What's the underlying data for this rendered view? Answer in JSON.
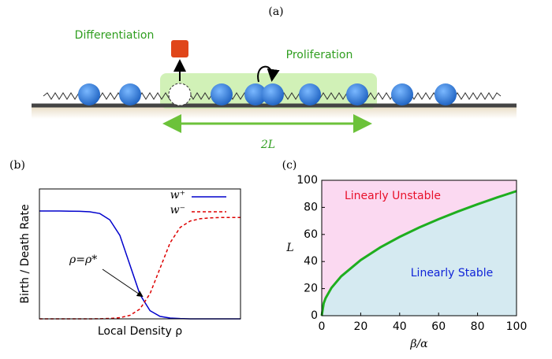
{
  "panel_a": {
    "label": "(a)",
    "differentiation": "Differentiation",
    "proliferation": "Proliferation",
    "length": "2L"
  },
  "chart_data": [
    {
      "type": "line",
      "label": "(b)",
      "xlabel": "Local Density ρ",
      "ylabel": "Birth / Death Rate",
      "annotation": "ρ=ρ*",
      "legend": "upper right",
      "xlim": [
        0,
        1
      ],
      "ylim": [
        0,
        1
      ],
      "x": [
        0,
        0.05,
        0.1,
        0.15,
        0.2,
        0.25,
        0.3,
        0.35,
        0.4,
        0.45,
        0.5,
        0.55,
        0.6,
        0.65,
        0.7,
        0.75,
        0.8,
        0.85,
        0.9,
        0.95,
        1
      ],
      "series": [
        {
          "name": "w⁺",
          "color": "#0000cc",
          "dash": "solid",
          "values": [
            0.83,
            0.83,
            0.83,
            0.829,
            0.828,
            0.824,
            0.811,
            0.762,
            0.643,
            0.415,
            0.187,
            0.063,
            0.019,
            0.006,
            0.002,
            0,
            0,
            0,
            0,
            0,
            0
          ]
        },
        {
          "name": "w⁻",
          "color": "#dd0000",
          "dash": "dashed",
          "values": [
            0,
            0,
            0,
            0,
            0,
            0,
            0.001,
            0.003,
            0.009,
            0.027,
            0.076,
            0.194,
            0.39,
            0.586,
            0.704,
            0.753,
            0.771,
            0.777,
            0.78,
            0.78,
            0.78
          ]
        }
      ]
    },
    {
      "type": "line",
      "label": "(c)",
      "xlabel": "β/α",
      "ylabel": "L",
      "xlim": [
        0,
        100
      ],
      "ylim": [
        0,
        100
      ],
      "xticks": [
        0,
        20,
        40,
        60,
        80,
        100
      ],
      "yticks": [
        0,
        20,
        40,
        60,
        80,
        100
      ],
      "fill_above": "#fbd9f1",
      "fill_below": "#d5eaf1",
      "annotations": [
        {
          "text": "Linearly Unstable",
          "color": "#e8102a"
        },
        {
          "text": "Linearly Stable",
          "color": "#1024d8"
        }
      ],
      "x": [
        0,
        1,
        2,
        5,
        10,
        20,
        30,
        40,
        50,
        60,
        70,
        80,
        90,
        100
      ],
      "series": [
        {
          "color": "#1fae1f",
          "dash": "solid",
          "values": [
            0,
            9.2,
            13,
            20.6,
            29.1,
            41.1,
            50.4,
            58.2,
            65.1,
            71.3,
            77,
            82.3,
            87.3,
            92
          ]
        }
      ]
    }
  ]
}
